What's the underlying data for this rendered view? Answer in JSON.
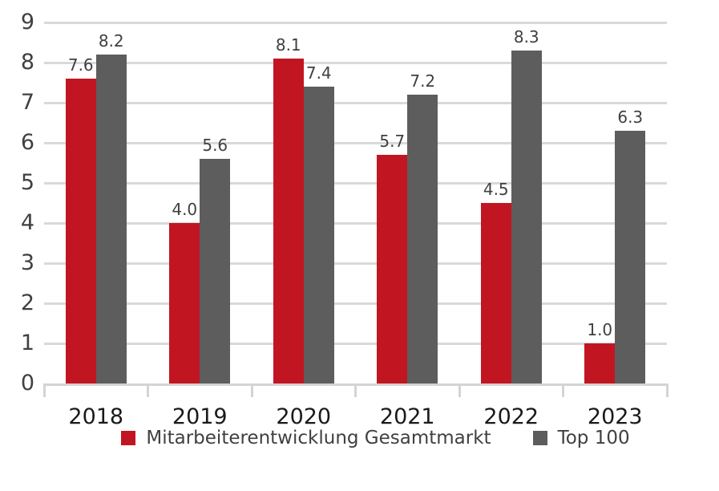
{
  "chart_data": {
    "type": "bar",
    "title": "",
    "xlabel": "",
    "ylabel": "",
    "categories": [
      "2018",
      "2019",
      "2020",
      "2021",
      "2022",
      "2023"
    ],
    "series": [
      {
        "name": "Mitarbeiterentwicklung Gesamtmarkt",
        "color": "#c11622",
        "values": [
          7.6,
          4.0,
          8.1,
          5.7,
          4.5,
          1.0
        ]
      },
      {
        "name": "Top 100",
        "color": "#5d5d5d",
        "values": [
          8.2,
          5.6,
          7.4,
          7.2,
          8.3,
          6.3
        ]
      }
    ],
    "ylim": [
      0,
      9
    ],
    "yticks": [
      0,
      1,
      2,
      3,
      4,
      5,
      6,
      7,
      8,
      9
    ],
    "grid": true,
    "legend_position": "bottom",
    "value_labels": true,
    "value_label_decimals": 1
  },
  "colors": {
    "background": "#ffffff",
    "gridline": "#d9d9d9",
    "axis_line": "#d4d4d4",
    "y_label": "#404040",
    "x_label": "#1a1a1a",
    "value_label": "#404040",
    "legend_text": "#404040"
  }
}
